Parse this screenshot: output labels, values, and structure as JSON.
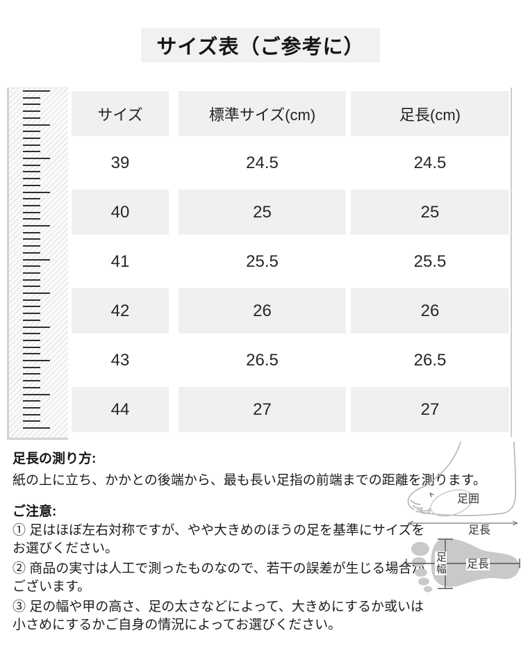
{
  "title": "サイズ表（ご参考に）",
  "table": {
    "headers": [
      "サイズ",
      "標準サイズ(cm)",
      "足長(cm)"
    ],
    "rows": [
      [
        "39",
        "24.5",
        "24.5"
      ],
      [
        "40",
        "25",
        "25"
      ],
      [
        "41",
        "25.5",
        "25.5"
      ],
      [
        "42",
        "26",
        "26"
      ],
      [
        "43",
        "26.5",
        "26.5"
      ],
      [
        "44",
        "27",
        "27"
      ]
    ]
  },
  "measure_section": {
    "heading": "足長の測り方:",
    "body": "紙の上に立ち、かかとの後端から、最も長い足指の前端までの距離を測ります。"
  },
  "notes_section": {
    "heading": "ご注意:",
    "items": [
      "① 足はほぼ左右対称ですが、やや大きめのほうの足を基準にサイズを\nお選びください。",
      "② 商品の実寸は人工で測ったものなので、若干の誤差が生じる場合が\nございます。",
      "③ 足の幅や甲の高さ、足の太さなどによって、大きめにするか或いは\n小さめにするかご自身の情況によってお選びください。"
    ]
  },
  "diagram_labels": {
    "side_girth": "足囲",
    "side_length": "足長",
    "sole_width": "足幅",
    "sole_length": "足長"
  },
  "colors": {
    "title_bg": "#f1f1f1",
    "cell_gray": "#f0f0f0",
    "text": "#1c1c1c",
    "ruler_border": "#d2d2d2",
    "diagram_gray": "#c9c9c9",
    "line_gray": "#9e9e9e"
  }
}
